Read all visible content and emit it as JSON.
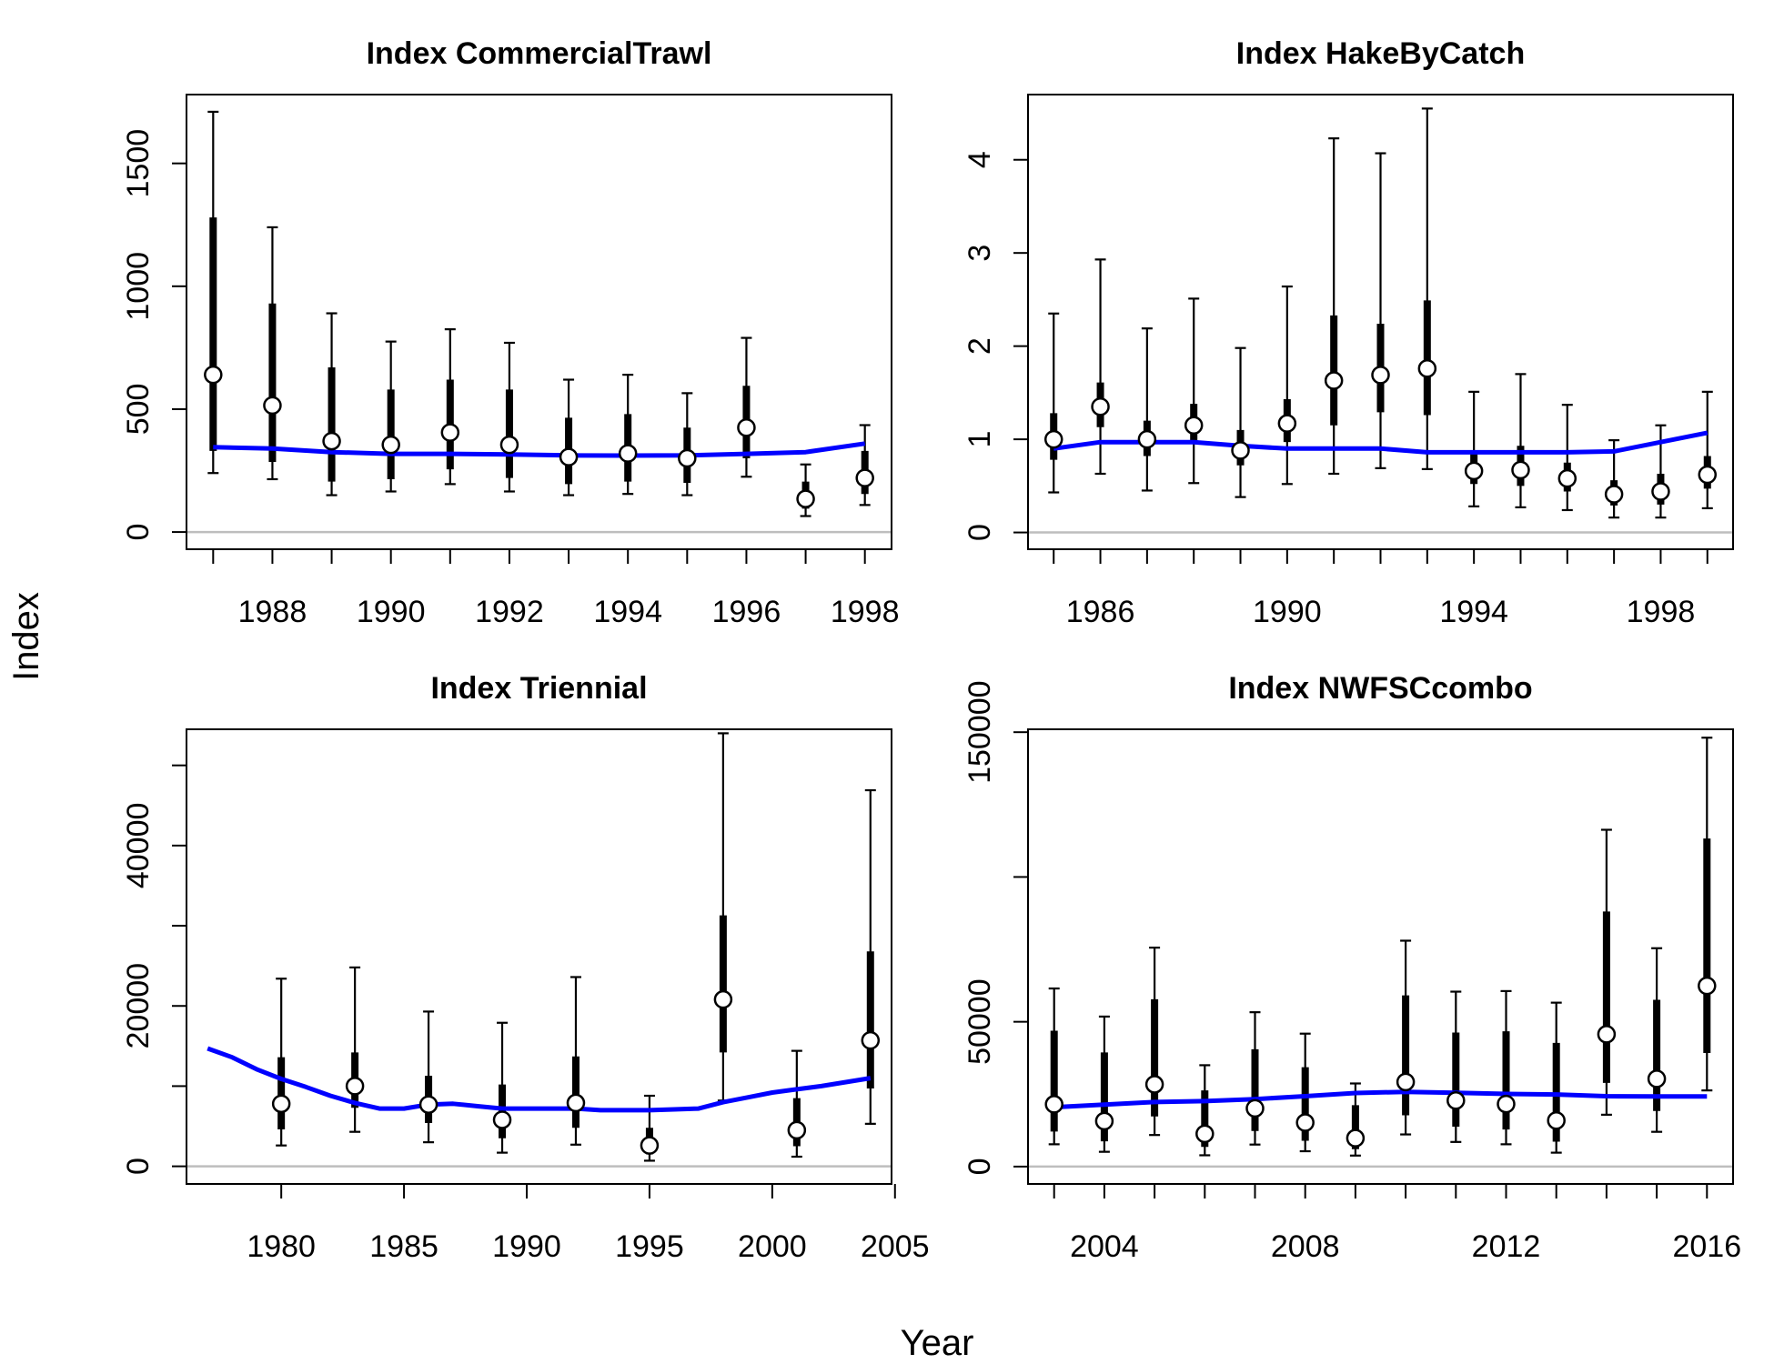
{
  "figure": {
    "xlabel": "Year",
    "ylabel": "Index"
  },
  "style": {
    "observed_color": "#000000",
    "point_fill": "#ffffff",
    "expected_color": "#0000ff",
    "zero_line_color": "#bebebe"
  },
  "chart_data": [
    {
      "type": "scatter",
      "title": "Index CommercialTrawl",
      "xlim": [
        1986.55,
        1998.45
      ],
      "ylim": [
        -70,
        1780
      ],
      "xticks": [
        1988,
        1990,
        1992,
        1994,
        1996,
        1998
      ],
      "xtick_labels": [
        "1988",
        "1990",
        "1992",
        "1994",
        "1996",
        "1998"
      ],
      "yticks": [
        0,
        500,
        1000,
        1500
      ],
      "ytick_labels": [
        "0",
        "500",
        "1000",
        "1500"
      ],
      "minor_xticks": [
        1987,
        1989,
        1991,
        1993,
        1995,
        1997
      ],
      "observed": {
        "x": [
          1987,
          1988,
          1989,
          1990,
          1991,
          1992,
          1993,
          1994,
          1995,
          1996,
          1997,
          1998
        ],
        "y": [
          640,
          515,
          370,
          355,
          405,
          355,
          305,
          320,
          300,
          425,
          135,
          220
        ],
        "lower_outer": [
          240,
          215,
          150,
          165,
          195,
          165,
          150,
          155,
          150,
          225,
          65,
          110
        ],
        "upper_outer": [
          1710,
          1240,
          890,
          775,
          825,
          770,
          620,
          640,
          565,
          790,
          275,
          435
        ],
        "lower_inner": [
          330,
          285,
          205,
          215,
          255,
          220,
          195,
          205,
          200,
          300,
          95,
          155
        ],
        "upper_inner": [
          1280,
          930,
          670,
          580,
          620,
          580,
          465,
          480,
          425,
          595,
          205,
          330
        ]
      },
      "expected": {
        "x": [
          1987,
          1988,
          1989,
          1990,
          1991,
          1992,
          1993,
          1994,
          1995,
          1996,
          1997,
          1998
        ],
        "y": [
          345,
          340,
          325,
          318,
          318,
          316,
          312,
          311,
          312,
          318,
          325,
          360
        ]
      }
    },
    {
      "type": "scatter",
      "title": "Index HakeByCatch",
      "xlim": [
        1984.45,
        1999.55
      ],
      "ylim": [
        -0.18,
        4.7
      ],
      "xticks": [
        1986,
        1990,
        1994,
        1998
      ],
      "xtick_labels": [
        "1986",
        "1990",
        "1994",
        "1998"
      ],
      "yticks": [
        0,
        1,
        2,
        3,
        4
      ],
      "ytick_labels": [
        "0",
        "1",
        "2",
        "3",
        "4"
      ],
      "minor_xticks": [
        1985,
        1987,
        1988,
        1989,
        1991,
        1992,
        1993,
        1995,
        1996,
        1997,
        1999
      ],
      "observed": {
        "x": [
          1985,
          1986,
          1987,
          1988,
          1989,
          1990,
          1991,
          1992,
          1993,
          1994,
          1995,
          1996,
          1997,
          1998,
          1999
        ],
        "y": [
          1.0,
          1.35,
          1.0,
          1.15,
          0.88,
          1.17,
          1.63,
          1.69,
          1.76,
          0.66,
          0.67,
          0.58,
          0.41,
          0.44,
          0.62
        ],
        "lower_outer": [
          0.43,
          0.63,
          0.45,
          0.53,
          0.38,
          0.52,
          0.63,
          0.69,
          0.68,
          0.28,
          0.27,
          0.24,
          0.16,
          0.16,
          0.26
        ],
        "upper_outer": [
          2.35,
          2.93,
          2.19,
          2.51,
          1.98,
          2.64,
          4.23,
          4.07,
          4.55,
          1.51,
          1.7,
          1.37,
          0.99,
          1.15,
          1.51
        ],
        "lower_inner": [
          0.78,
          1.13,
          0.82,
          0.97,
          0.72,
          0.97,
          1.15,
          1.29,
          1.26,
          0.52,
          0.5,
          0.44,
          0.29,
          0.3,
          0.47
        ],
        "upper_inner": [
          1.28,
          1.61,
          1.2,
          1.38,
          1.1,
          1.43,
          2.33,
          2.24,
          2.49,
          0.85,
          0.93,
          0.75,
          0.56,
          0.63,
          0.82
        ]
      },
      "expected": {
        "x": [
          1985,
          1986,
          1987,
          1988,
          1989,
          1990,
          1991,
          1992,
          1993,
          1994,
          1995,
          1996,
          1997,
          1998,
          1999
        ],
        "y": [
          0.9,
          0.97,
          0.97,
          0.97,
          0.93,
          0.9,
          0.9,
          0.9,
          0.86,
          0.86,
          0.86,
          0.86,
          0.87,
          0.97,
          1.07
        ]
      }
    },
    {
      "type": "scatter",
      "title": "Index Triennial",
      "xlim": [
        1976.14,
        2004.86
      ],
      "ylim": [
        -2200,
        54500
      ],
      "xticks": [
        1980,
        1985,
        1990,
        1995,
        2000,
        2005
      ],
      "xtick_labels": [
        "1980",
        "1985",
        "1990",
        "1995",
        "2000",
        "2005"
      ],
      "yticks": [
        0,
        10000,
        20000,
        30000,
        40000,
        50000
      ],
      "ytick_labels": [
        "0",
        "",
        "20000",
        "",
        "40000",
        ""
      ],
      "minor_xticks": [],
      "observed": {
        "x": [
          1980,
          1983,
          1986,
          1989,
          1992,
          1995,
          1998,
          2001,
          2004
        ],
        "y": [
          7800,
          10000,
          7700,
          5800,
          7900,
          2600,
          20800,
          4500,
          15700
        ],
        "lower_outer": [
          2600,
          4300,
          3000,
          1700,
          2700,
          700,
          8200,
          1200,
          5300
        ],
        "upper_outer": [
          23400,
          24800,
          19300,
          17900,
          23600,
          8800,
          54000,
          14400,
          46900
        ],
        "lower_inner": [
          4600,
          7300,
          5400,
          3500,
          4800,
          1500,
          14200,
          2500,
          9700
        ],
        "upper_inner": [
          13600,
          14200,
          11300,
          10200,
          13700,
          4800,
          31300,
          8500,
          26800
        ]
      },
      "expected": {
        "x": [
          1977,
          1978,
          1979,
          1980,
          1981,
          1982,
          1983,
          1984,
          1985,
          1986,
          1987,
          1988,
          1989,
          1990,
          1991,
          1992,
          1993,
          1994,
          1995,
          1996,
          1997,
          1998,
          1999,
          2000,
          2001,
          2002,
          2003,
          2004
        ],
        "y": [
          14700,
          13600,
          12100,
          10900,
          9900,
          8800,
          7900,
          7200,
          7200,
          7700,
          7800,
          7500,
          7200,
          7200,
          7200,
          7200,
          7000,
          7000,
          7000,
          7100,
          7200,
          8000,
          8600,
          9200,
          9600,
          10000,
          10500,
          11000
        ]
      }
    },
    {
      "type": "scatter",
      "title": "Index NWFSCcombo",
      "xlim": [
        2002.48,
        2016.52
      ],
      "ylim": [
        -6000,
        151000
      ],
      "xticks": [
        2004,
        2008,
        2012,
        2016
      ],
      "xtick_labels": [
        "2004",
        "2008",
        "2012",
        "2016"
      ],
      "yticks": [
        0,
        50000,
        100000,
        150000
      ],
      "ytick_labels": [
        "0",
        "50000",
        "",
        "150000"
      ],
      "minor_xticks": [
        2003,
        2005,
        2006,
        2007,
        2009,
        2010,
        2011,
        2013,
        2014,
        2015
      ],
      "observed": {
        "x": [
          2003,
          2004,
          2005,
          2006,
          2007,
          2008,
          2009,
          2010,
          2011,
          2012,
          2013,
          2014,
          2015,
          2016
        ],
        "y": [
          21500,
          15700,
          28400,
          11300,
          20100,
          15200,
          9800,
          29200,
          22800,
          21600,
          15900,
          45700,
          30300,
          62400
        ],
        "lower_outer": [
          7700,
          5100,
          10900,
          3900,
          7600,
          5300,
          3800,
          11100,
          8500,
          7700,
          4800,
          17900,
          12000,
          26300
        ],
        "upper_outer": [
          61500,
          51800,
          75600,
          35000,
          53300,
          45900,
          28700,
          78000,
          60400,
          60600,
          56600,
          116300,
          75400,
          148100
        ],
        "lower_inner": [
          12100,
          8700,
          17300,
          6800,
          12300,
          8900,
          6000,
          17700,
          13800,
          12800,
          8600,
          28900,
          19200,
          39200
        ],
        "upper_inner": [
          46900,
          39400,
          57800,
          26300,
          40500,
          34300,
          21200,
          59100,
          46300,
          46700,
          42700,
          88100,
          57600,
          113300
        ]
      },
      "expected": {
        "x": [
          2003,
          2004,
          2005,
          2006,
          2007,
          2008,
          2009,
          2010,
          2011,
          2012,
          2013,
          2014,
          2015,
          2016
        ],
        "y": [
          20500,
          21400,
          22300,
          22600,
          23300,
          24300,
          25400,
          25800,
          25500,
          25100,
          24900,
          24300,
          24200,
          24200
        ]
      }
    }
  ]
}
